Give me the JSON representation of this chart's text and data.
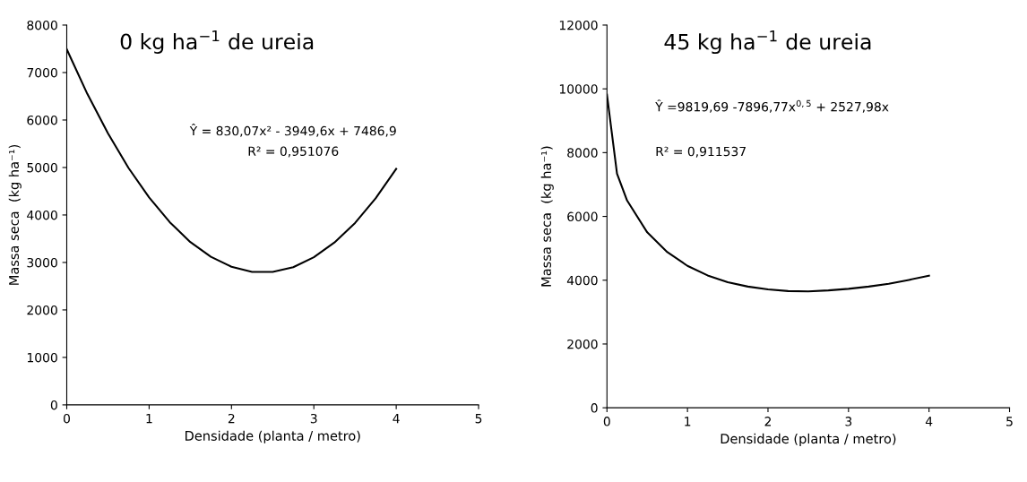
{
  "chart_data": [
    {
      "type": "line",
      "title": "0 kg ha$^{−1}$ de ureia",
      "xlabel": "Densidade (planta / metro)",
      "ylabel": "Massa seca  (kg ha⁻¹)",
      "annotations": [
        "Ŷ = 830,07x² - 3949,6x + 7486,9",
        "R² = 0,951076"
      ],
      "series": [
        {
          "color": "#000000",
          "x": [
            0,
            0.25,
            0.5,
            0.75,
            1,
            1.25,
            1.5,
            1.75,
            2,
            2.25,
            2.5,
            2.75,
            3,
            3.25,
            3.5,
            3.75,
            4
          ],
          "values": [
            7490,
            6550,
            5720,
            4990,
            4370,
            3850,
            3430,
            3120,
            2910,
            2800,
            2800,
            2900,
            3110,
            3420,
            3830,
            4350,
            4970
          ]
        }
      ],
      "xlim": [
        0,
        5
      ],
      "ylim": [
        0,
        8000
      ],
      "xticks": [
        0,
        1,
        2,
        3,
        4,
        5
      ],
      "yticks": [
        0,
        1000,
        2000,
        3000,
        4000,
        5000,
        6000,
        7000,
        8000
      ]
    },
    {
      "type": "line",
      "title": "45 kg ha$^{−1}$ de ureia",
      "xlabel": "Densidade (planta / metro)",
      "ylabel": "Massa seca  (kg ha⁻¹)",
      "annotations": [
        "Ŷ =9819,69 -7896,77x$^{0,5}$ + 2527,98x",
        "R² = 0,911537"
      ],
      "series": [
        {
          "color": "#000000",
          "x": [
            0,
            0.125,
            0.25,
            0.5,
            0.75,
            1,
            1.25,
            1.5,
            1.75,
            2,
            2.25,
            2.5,
            2.75,
            3,
            3.25,
            3.5,
            3.75,
            4
          ],
          "values": [
            9820,
            7340,
            6500,
            5500,
            4880,
            4450,
            4150,
            3940,
            3800,
            3710,
            3660,
            3650,
            3680,
            3730,
            3800,
            3890,
            4010,
            4140
          ]
        }
      ],
      "xlim": [
        0,
        5
      ],
      "ylim": [
        0,
        12000
      ],
      "xticks": [
        0,
        1,
        2,
        3,
        4,
        5
      ],
      "yticks": [
        0,
        2000,
        4000,
        6000,
        8000,
        10000,
        12000
      ]
    }
  ]
}
